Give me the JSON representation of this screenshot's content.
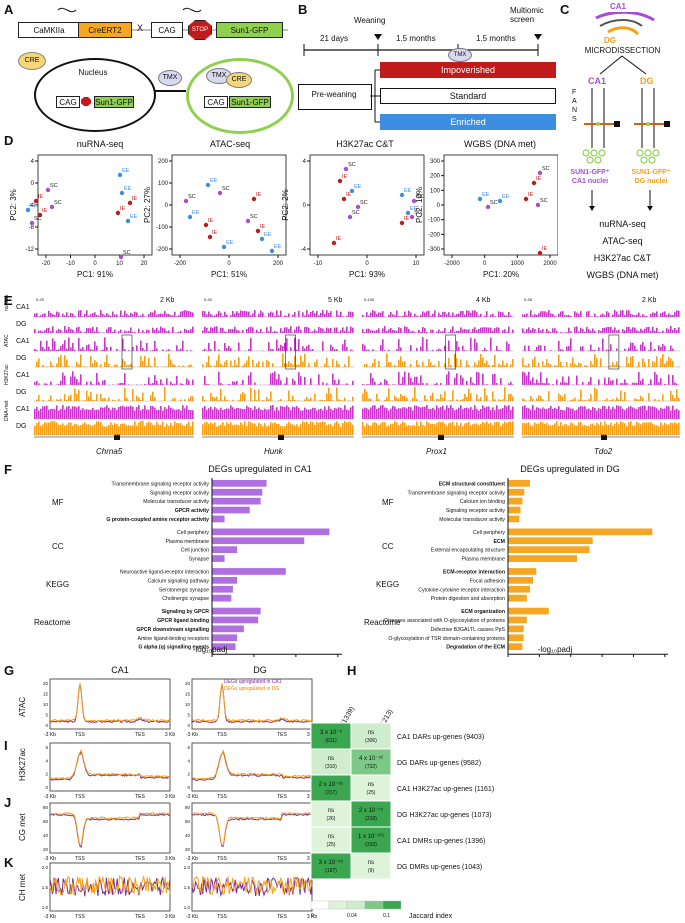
{
  "panels": {
    "A": "A",
    "B": "B",
    "C": "C",
    "D": "D",
    "E": "E",
    "F": "F",
    "G": "G",
    "H": "H",
    "I": "I",
    "J": "J",
    "K": "K"
  },
  "colors": {
    "purple": "#a64dd6",
    "orange": "#f5a623",
    "red": "#c01a1a",
    "blue": "#3d8ee0",
    "magenta": "#cc33cc",
    "dg_orange": "#f5a015"
  },
  "panelA": {
    "camk": "CaMKIIa",
    "cre": "CreERT2",
    "x": "X",
    "cag": "CAG",
    "stop": "STOP",
    "sun": "Sun1-GFP",
    "cre_badge": "CRE",
    "nucleus": "Nucleus",
    "tmx": "TMX",
    "tmx2": "TMX",
    "cre2": "CRE"
  },
  "panelB": {
    "d21": "21 days",
    "weaning": "Weaning",
    "m1": "1.5 months",
    "m2": "1.5 months",
    "multiomic": "Multiomic\nscreen",
    "tmx": "TMX",
    "preweaning": "Pre-weaning",
    "impov": "Impoverished",
    "standard": "Standard",
    "enriched": "Enriched"
  },
  "panelC": {
    "ca1": "CA1",
    "dg": "DG",
    "micro": "MICRODISSECTION",
    "fans": "F\nA\nN\nS",
    "ca1_nuclei": "SUN1-GFP⁺\nCA1 nuclei",
    "dg_nuclei": "SUN1-GFP⁺\nDG nuclei",
    "assays": [
      "nuRNA-seq",
      "ATAC-seq",
      "H3K27ac C&T",
      "WGBS (DNA met)"
    ]
  },
  "panelD": {
    "plots": [
      {
        "title": "nuRNA-seq",
        "xlabel": "PC1: 91%",
        "ylabel": "PC2: 3%",
        "xticks": [
          "-20",
          "-10",
          "0",
          "10",
          "20"
        ],
        "yticks": [
          "4",
          "0",
          "-4",
          "-8",
          "-12"
        ]
      },
      {
        "title": "ATAC-seq",
        "xlabel": "PC1: 51%",
        "ylabel": "PC2: 27%",
        "xticks": [
          "-200",
          "0",
          "200"
        ],
        "yticks": [
          "200",
          "100",
          "0",
          "-100",
          "-200"
        ]
      },
      {
        "title": "H3K27ac C&T",
        "xlabel": "PC1: 93%",
        "ylabel": "PC2: 2%",
        "xticks": [
          "-10",
          "0",
          "10"
        ],
        "yticks": [
          "4",
          "0",
          "-4"
        ]
      },
      {
        "title": "WGBS (DNA met)",
        "xlabel": "PC1: 20%",
        "ylabel": "PC2: 10%",
        "xticks": [
          "-2000",
          "0",
          "1000",
          "2000"
        ],
        "yticks": [
          "300",
          "200",
          "100",
          "0",
          "-100",
          "-200",
          "-300"
        ]
      }
    ],
    "labels": {
      "sc": "SC",
      "ee": "EE",
      "ie": "IE"
    }
  },
  "panelE": {
    "rows": [
      "CA1",
      "DG",
      "CA1",
      "DG",
      "CA1",
      "DG",
      "CA1",
      "DG"
    ],
    "groups": [
      "nuRNA",
      "ATAC",
      "H3K27ac",
      "DNA-met"
    ],
    "genes": [
      "Chrna5",
      "Hunk",
      "Prox1",
      "Tdo2"
    ],
    "scales": [
      "2 Kb",
      "5 Kb",
      "4 Kb",
      "2 Kb"
    ],
    "vals": [
      "0-20",
      "0-30",
      "0-100",
      "0-35"
    ]
  },
  "panelF": {
    "left_title": "DEGs upregulated in CA1",
    "right_title": "DEGs upregulated in DG",
    "xlabel": "-log₁₀padj",
    "groups": [
      "MF",
      "CC",
      "KEGG",
      "Reactome"
    ],
    "left_ticks": [
      "0",
      "5",
      "10",
      "15"
    ],
    "right_ticks": [
      "0",
      "5",
      "10",
      "15",
      "20",
      "25"
    ],
    "left_terms": [
      {
        "label": "Transmembrane signaling receptor activity",
        "v": 6.5,
        "b": false
      },
      {
        "label": "Signaling receptor activity",
        "v": 6.0,
        "b": false
      },
      {
        "label": "Molecular transducer activity",
        "v": 5.8,
        "b": false
      },
      {
        "label": "GPCR activity",
        "v": 4.5,
        "b": true
      },
      {
        "label": "G protein-coupled amine receptor activity",
        "v": 1.5,
        "b": true
      },
      {
        "label": "Cell periphery",
        "v": 14.0,
        "b": false
      },
      {
        "label": "Plasma membrane",
        "v": 11.0,
        "b": false
      },
      {
        "label": "Cell junction",
        "v": 3.0,
        "b": false
      },
      {
        "label": "Synapse",
        "v": 1.5,
        "b": false
      },
      {
        "label": "Neuroactive ligand-receptor interaction",
        "v": 8.8,
        "b": false
      },
      {
        "label": "Calcium signaling pathway",
        "v": 3.0,
        "b": false
      },
      {
        "label": "Serotonergic synapse",
        "v": 2.5,
        "b": false
      },
      {
        "label": "Cholinergic synapse",
        "v": 2.3,
        "b": false
      },
      {
        "label": "Signaling by GPCR",
        "v": 5.8,
        "b": true
      },
      {
        "label": "GPCR ligand binding",
        "v": 5.5,
        "b": true
      },
      {
        "label": "GPCR downstream signalling",
        "v": 3.8,
        "b": true
      },
      {
        "label": "Amine ligand-binding receptors",
        "v": 3.0,
        "b": false
      },
      {
        "label": "G alpha (q) signalling events",
        "v": 2.8,
        "b": true
      }
    ],
    "right_terms": [
      {
        "label": "ECM structural constituent",
        "v": 3.5,
        "b": true
      },
      {
        "label": "Transmembrane signaling receptor activity",
        "v": 2.6,
        "b": false
      },
      {
        "label": "Calcium ion binding",
        "v": 2.3,
        "b": false
      },
      {
        "label": "Signaling receptor activity",
        "v": 2.0,
        "b": false
      },
      {
        "label": "Molecular transducer activity",
        "v": 1.8,
        "b": false
      },
      {
        "label": "Cell periphery",
        "v": 23.0,
        "b": false
      },
      {
        "label": "ECM",
        "v": 13.5,
        "b": true
      },
      {
        "label": "External encapsulating structure",
        "v": 13.0,
        "b": false
      },
      {
        "label": "Plasma membrane",
        "v": 11.0,
        "b": false
      },
      {
        "label": "ECM-receptor interaction",
        "v": 4.5,
        "b": true
      },
      {
        "label": "Focal adhesion",
        "v": 4.0,
        "b": false
      },
      {
        "label": "Cytokine-cytokine receptor interaction",
        "v": 3.5,
        "b": false
      },
      {
        "label": "Protein digestion and absorption",
        "v": 3.0,
        "b": false
      },
      {
        "label": "ECM organization",
        "v": 6.5,
        "b": true
      },
      {
        "label": "Diseases associated with O-glycosylation of proteins",
        "v": 3.0,
        "b": false
      },
      {
        "label": "Defective B3GALTL causes PpS",
        "v": 2.5,
        "b": false
      },
      {
        "label": "O-glycosylation of TSR domain-containing proteins",
        "v": 2.5,
        "b": false
      },
      {
        "label": "Degradation of the ECM",
        "v": 2.3,
        "b": true
      }
    ]
  },
  "panelGIJK": {
    "ca1": "CA1",
    "dg": "DG",
    "rows": [
      "ATAC",
      "H3K27ac",
      "CG met",
      "CH met"
    ],
    "legend1": "DEGs upregulated in CA1",
    "legend2": "DEGs upregulated in DG",
    "xticks": [
      "-3 Kb",
      "TSS",
      "TES",
      "3 Kb"
    ]
  },
  "panelH": {
    "cols": [
      "DEGs up CA1 (1339)",
      "DEGs up DG (1213)"
    ],
    "rows": [
      "CA1 DARs up-genes (9403)",
      "DG DARs up-genes (9582)",
      "CA1 H3K27ac up-genes (1161)",
      "DG H3K27ac up-genes (1073)",
      "CA1 DMRs up-genes (1396)",
      "DG DMRs up-genes (1043)"
    ],
    "cells": [
      [
        {
          "p": "3 x 10⁻⁶",
          "n": "(611)",
          "c": "#3aa64f"
        },
        {
          "p": "ns",
          "n": "(306)",
          "c": "#cfeccc"
        }
      ],
      [
        {
          "p": "ns",
          "n": "(310)",
          "c": "#cfeccc"
        },
        {
          "p": "4 x 10⁻⁵²",
          "n": "(732)",
          "c": "#7cc886"
        }
      ],
      [
        {
          "p": "2 x 10⁻⁸⁵",
          "n": "(217)",
          "c": "#3aa64f"
        },
        {
          "p": "ns",
          "n": "(25)",
          "c": "#dff3db"
        }
      ],
      [
        {
          "p": "ns",
          "n": "(26)",
          "c": "#dff3db"
        },
        {
          "p": "2 x 10⁻⁷⁶",
          "n": "(218)",
          "c": "#3aa64f"
        }
      ],
      [
        {
          "p": "ns",
          "n": "(25)",
          "c": "#dff3db"
        },
        {
          "p": "1 x 10⁻¹⁰¹",
          "n": "(310)",
          "c": "#3aa64f"
        }
      ],
      [
        {
          "p": "3 x 10⁻⁵⁵",
          "n": "(197)",
          "c": "#3aa64f"
        },
        {
          "p": "ns",
          "n": "(9)",
          "c": "#dff3db"
        }
      ]
    ],
    "legend_ticks": [
      "0",
      "0.04",
      "0.1"
    ],
    "legend_label": "Jaccard index"
  }
}
